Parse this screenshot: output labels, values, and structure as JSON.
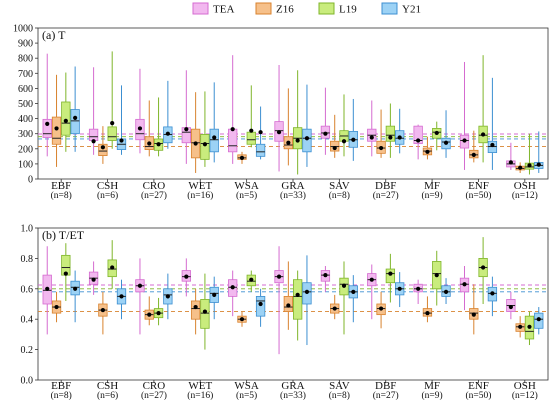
{
  "legend": [
    {
      "name": "TEA",
      "fill": "#f2b8ef",
      "stroke": "#d56bd0"
    },
    {
      "name": "Z16",
      "fill": "#f6c08a",
      "stroke": "#d8822e"
    },
    {
      "name": "L19",
      "fill": "#c9ec7d",
      "stroke": "#7fb52a"
    },
    {
      "name": "Y21",
      "fill": "#9cd2f5",
      "stroke": "#3c8fd1"
    }
  ],
  "categories": [
    "EBF",
    "CSH",
    "CRO",
    "WET",
    "WSA",
    "GRA",
    "SAV",
    "DBF",
    "MF",
    "ENF",
    "OSH"
  ],
  "n_labels": [
    "(n=8)",
    "(n=6)",
    "(n=27)",
    "(n=16)",
    "(n=5)",
    "(n=33)",
    "(n=8)",
    "(n=27)",
    "(n=9)",
    "(n=50)",
    "(n=12)"
  ],
  "chart_data": [
    {
      "type": "box",
      "title": "(a) T",
      "ylim": [
        0,
        1000
      ],
      "yticks": [
        "0",
        "100",
        "200",
        "300",
        "400",
        "500",
        "600",
        "700",
        "800",
        "900",
        "1000"
      ],
      "yticks_values": [
        0,
        100,
        200,
        300,
        400,
        500,
        600,
        700,
        800,
        900,
        1000
      ],
      "ref_lines": [
        {
          "series": "TEA",
          "value": 298
        },
        {
          "series": "Z16",
          "value": 215
        },
        {
          "series": "L19",
          "value": 280
        },
        {
          "series": "Y21",
          "value": 265
        }
      ],
      "groups": [
        [
          {
            "min": 150,
            "q1": 275,
            "med": 300,
            "q3": 395,
            "max": 830,
            "mean": 365
          },
          {
            "min": 80,
            "q1": 230,
            "med": 270,
            "q3": 410,
            "max": 690,
            "mean": 335
          },
          {
            "min": 180,
            "q1": 290,
            "med": 370,
            "q3": 510,
            "max": 705,
            "mean": 385
          },
          {
            "min": 180,
            "q1": 300,
            "med": 385,
            "q3": 460,
            "max": 745,
            "mean": 405
          }
        ],
        [
          {
            "min": 160,
            "q1": 255,
            "med": 280,
            "q3": 330,
            "max": 740,
            "mean": 250
          },
          {
            "min": 100,
            "q1": 155,
            "med": 185,
            "q3": 230,
            "max": 350,
            "mean": 210
          },
          {
            "min": 200,
            "q1": 255,
            "med": 280,
            "q3": 345,
            "max": 845,
            "mean": 370
          },
          {
            "min": 160,
            "q1": 195,
            "med": 230,
            "q3": 265,
            "max": 620,
            "mean": 255
          }
        ],
        [
          {
            "min": 170,
            "q1": 260,
            "med": 300,
            "q3": 395,
            "max": 730,
            "mean": 335
          },
          {
            "min": 150,
            "q1": 195,
            "med": 215,
            "q3": 280,
            "max": 520,
            "mean": 235
          },
          {
            "min": 150,
            "q1": 190,
            "med": 235,
            "q3": 265,
            "max": 540,
            "mean": 230
          },
          {
            "min": 200,
            "q1": 240,
            "med": 295,
            "q3": 345,
            "max": 650,
            "mean": 300
          }
        ],
        [
          {
            "min": 100,
            "q1": 240,
            "med": 310,
            "q3": 340,
            "max": 720,
            "mean": 330
          },
          {
            "min": 40,
            "q1": 140,
            "med": 240,
            "q3": 330,
            "max": 575,
            "mean": 235
          },
          {
            "min": 80,
            "q1": 130,
            "med": 235,
            "q3": 295,
            "max": 580,
            "mean": 230
          },
          {
            "min": 110,
            "q1": 180,
            "med": 260,
            "q3": 330,
            "max": 640,
            "mean": 275
          }
        ],
        [
          {
            "min": 100,
            "q1": 180,
            "med": 220,
            "q3": 330,
            "max": 820,
            "mean": 330
          },
          {
            "min": 100,
            "q1": 130,
            "med": 140,
            "q3": 160,
            "max": 180,
            "mean": 140
          },
          {
            "min": 210,
            "q1": 230,
            "med": 260,
            "q3": 310,
            "max": 620,
            "mean": 320
          },
          {
            "min": 130,
            "q1": 150,
            "med": 180,
            "q3": 230,
            "max": 480,
            "mean": 310
          }
        ],
        [
          {
            "min": 50,
            "q1": 250,
            "med": 320,
            "q3": 380,
            "max": 755,
            "mean": 310
          },
          {
            "min": 90,
            "q1": 200,
            "med": 225,
            "q3": 280,
            "max": 600,
            "mean": 240
          },
          {
            "min": 30,
            "q1": 200,
            "med": 270,
            "q3": 340,
            "max": 720,
            "mean": 255
          },
          {
            "min": 80,
            "q1": 180,
            "med": 270,
            "q3": 330,
            "max": 625,
            "mean": 270
          }
        ],
        [
          {
            "min": 160,
            "q1": 270,
            "med": 305,
            "q3": 350,
            "max": 605,
            "mean": 300
          },
          {
            "min": 140,
            "q1": 185,
            "med": 215,
            "q3": 250,
            "max": 425,
            "mean": 205
          },
          {
            "min": 150,
            "q1": 250,
            "med": 285,
            "q3": 320,
            "max": 560,
            "mean": 250
          },
          {
            "min": 120,
            "q1": 210,
            "med": 260,
            "q3": 315,
            "max": 530,
            "mean": 260
          }
        ],
        [
          {
            "min": 150,
            "q1": 250,
            "med": 290,
            "q3": 330,
            "max": 520,
            "mean": 275
          },
          {
            "min": 140,
            "q1": 170,
            "med": 205,
            "q3": 250,
            "max": 460,
            "mean": 205
          },
          {
            "min": 140,
            "q1": 250,
            "med": 290,
            "q3": 350,
            "max": 500,
            "mean": 275
          },
          {
            "min": 170,
            "q1": 230,
            "med": 270,
            "q3": 320,
            "max": 465,
            "mean": 275
          }
        ],
        [
          {
            "min": 130,
            "q1": 235,
            "med": 255,
            "q3": 350,
            "max": 360,
            "mean": 255
          },
          {
            "min": 130,
            "q1": 160,
            "med": 185,
            "q3": 205,
            "max": 280,
            "mean": 180
          },
          {
            "min": 190,
            "q1": 270,
            "med": 310,
            "q3": 335,
            "max": 380,
            "mean": 305
          },
          {
            "min": 140,
            "q1": 200,
            "med": 245,
            "q3": 270,
            "max": 455,
            "mean": 240
          }
        ],
        [
          {
            "min": 60,
            "q1": 205,
            "med": 255,
            "q3": 290,
            "max": 775,
            "mean": 255
          },
          {
            "min": 110,
            "q1": 140,
            "med": 160,
            "q3": 190,
            "max": 320,
            "mean": 160
          },
          {
            "min": 110,
            "q1": 240,
            "med": 290,
            "q3": 350,
            "max": 820,
            "mean": 295
          },
          {
            "min": 60,
            "q1": 175,
            "med": 215,
            "q3": 250,
            "max": 670,
            "mean": 225
          }
        ],
        [
          {
            "min": 60,
            "q1": 80,
            "med": 100,
            "q3": 120,
            "max": 240,
            "mean": 110
          },
          {
            "min": 40,
            "q1": 60,
            "med": 70,
            "q3": 85,
            "max": 110,
            "mean": 75
          },
          {
            "min": 30,
            "q1": 65,
            "med": 80,
            "q3": 105,
            "max": 300,
            "mean": 90
          },
          {
            "min": 40,
            "q1": 70,
            "med": 90,
            "q3": 110,
            "max": 315,
            "mean": 95
          }
        ]
      ]
    },
    {
      "type": "box",
      "title": "(b) T/ET",
      "ylim": [
        0,
        1.0
      ],
      "yticks": [
        "0.0",
        "0.2",
        "0.4",
        "0.6",
        "0.8",
        "1.0"
      ],
      "yticks_values": [
        0,
        0.2,
        0.4,
        0.6,
        0.8,
        1.0
      ],
      "ref_lines": [
        {
          "series": "TEA",
          "value": 0.625
        },
        {
          "series": "Z16",
          "value": 0.45
        },
        {
          "series": "L19",
          "value": 0.6
        },
        {
          "series": "Y21",
          "value": 0.58
        }
      ],
      "groups": [
        [
          {
            "min": 0.3,
            "q1": 0.5,
            "med": 0.59,
            "q3": 0.69,
            "max": 0.88,
            "mean": 0.6
          },
          {
            "min": 0.38,
            "q1": 0.44,
            "med": 0.48,
            "q3": 0.52,
            "max": 0.58,
            "mean": 0.48
          },
          {
            "min": 0.52,
            "q1": 0.69,
            "med": 0.74,
            "q3": 0.82,
            "max": 0.9,
            "mean": 0.7
          },
          {
            "min": 0.38,
            "q1": 0.56,
            "med": 0.61,
            "q3": 0.65,
            "max": 0.72,
            "mean": 0.6
          }
        ],
        [
          {
            "min": 0.56,
            "q1": 0.63,
            "med": 0.67,
            "q3": 0.71,
            "max": 0.78,
            "mean": 0.66
          },
          {
            "min": 0.3,
            "q1": 0.42,
            "med": 0.46,
            "q3": 0.5,
            "max": 0.58,
            "mean": 0.46
          },
          {
            "min": 0.6,
            "q1": 0.68,
            "med": 0.73,
            "q3": 0.79,
            "max": 0.92,
            "mean": 0.74
          },
          {
            "min": 0.4,
            "q1": 0.5,
            "med": 0.55,
            "q3": 0.6,
            "max": 0.66,
            "mean": 0.55
          }
        ],
        [
          {
            "min": 0.3,
            "q1": 0.58,
            "med": 0.62,
            "q3": 0.66,
            "max": 0.8,
            "mean": 0.62
          },
          {
            "min": 0.36,
            "q1": 0.4,
            "med": 0.43,
            "q3": 0.46,
            "max": 0.55,
            "mean": 0.43
          },
          {
            "min": 0.36,
            "q1": 0.41,
            "med": 0.44,
            "q3": 0.47,
            "max": 0.54,
            "mean": 0.44
          },
          {
            "min": 0.4,
            "q1": 0.5,
            "med": 0.56,
            "q3": 0.6,
            "max": 0.7,
            "mean": 0.55
          }
        ],
        [
          {
            "min": 0.55,
            "q1": 0.65,
            "med": 0.68,
            "q3": 0.72,
            "max": 0.8,
            "mean": 0.68
          },
          {
            "min": 0.3,
            "q1": 0.4,
            "med": 0.47,
            "q3": 0.52,
            "max": 0.6,
            "mean": 0.48
          },
          {
            "min": 0.2,
            "q1": 0.34,
            "med": 0.44,
            "q3": 0.53,
            "max": 0.7,
            "mean": 0.45
          },
          {
            "min": 0.4,
            "q1": 0.51,
            "med": 0.57,
            "q3": 0.61,
            "max": 0.68,
            "mean": 0.56
          }
        ],
        [
          {
            "min": 0.42,
            "q1": 0.55,
            "med": 0.61,
            "q3": 0.66,
            "max": 0.72,
            "mean": 0.61
          },
          {
            "min": 0.35,
            "q1": 0.38,
            "med": 0.4,
            "q3": 0.42,
            "max": 0.45,
            "mean": 0.4
          },
          {
            "min": 0.58,
            "q1": 0.62,
            "med": 0.65,
            "q3": 0.69,
            "max": 0.72,
            "mean": 0.66
          },
          {
            "min": 0.35,
            "q1": 0.42,
            "med": 0.52,
            "q3": 0.55,
            "max": 0.6,
            "mean": 0.5
          }
        ],
        [
          {
            "min": 0.17,
            "q1": 0.64,
            "med": 0.68,
            "q3": 0.72,
            "max": 0.88,
            "mean": 0.68
          },
          {
            "min": 0.33,
            "q1": 0.45,
            "med": 0.48,
            "q3": 0.55,
            "max": 0.78,
            "mean": 0.49
          },
          {
            "min": 0.26,
            "q1": 0.4,
            "med": 0.55,
            "q3": 0.66,
            "max": 0.72,
            "mean": 0.56
          },
          {
            "min": 0.23,
            "q1": 0.5,
            "med": 0.58,
            "q3": 0.64,
            "max": 0.82,
            "mean": 0.58
          }
        ],
        [
          {
            "min": 0.58,
            "q1": 0.65,
            "med": 0.69,
            "q3": 0.72,
            "max": 0.75,
            "mean": 0.69
          },
          {
            "min": 0.4,
            "q1": 0.44,
            "med": 0.47,
            "q3": 0.5,
            "max": 0.56,
            "mean": 0.47
          },
          {
            "min": 0.3,
            "q1": 0.56,
            "med": 0.63,
            "q3": 0.67,
            "max": 0.78,
            "mean": 0.62
          },
          {
            "min": 0.38,
            "q1": 0.54,
            "med": 0.58,
            "q3": 0.62,
            "max": 0.69,
            "mean": 0.58
          }
        ],
        [
          {
            "min": 0.4,
            "q1": 0.62,
            "med": 0.66,
            "q3": 0.7,
            "max": 0.76,
            "mean": 0.66
          },
          {
            "min": 0.34,
            "q1": 0.43,
            "med": 0.47,
            "q3": 0.5,
            "max": 0.58,
            "mean": 0.47
          },
          {
            "min": 0.51,
            "q1": 0.64,
            "med": 0.7,
            "q3": 0.73,
            "max": 0.83,
            "mean": 0.7
          },
          {
            "min": 0.48,
            "q1": 0.56,
            "med": 0.6,
            "q3": 0.64,
            "max": 0.71,
            "mean": 0.6
          }
        ],
        [
          {
            "min": 0.5,
            "q1": 0.58,
            "med": 0.6,
            "q3": 0.63,
            "max": 0.66,
            "mean": 0.6
          },
          {
            "min": 0.38,
            "q1": 0.42,
            "med": 0.44,
            "q3": 0.47,
            "max": 0.55,
            "mean": 0.44
          },
          {
            "min": 0.49,
            "q1": 0.6,
            "med": 0.7,
            "q3": 0.78,
            "max": 0.85,
            "mean": 0.69
          },
          {
            "min": 0.5,
            "q1": 0.55,
            "med": 0.58,
            "q3": 0.62,
            "max": 0.67,
            "mean": 0.58
          }
        ],
        [
          {
            "min": 0.46,
            "q1": 0.58,
            "med": 0.63,
            "q3": 0.67,
            "max": 0.75,
            "mean": 0.63
          },
          {
            "min": 0.3,
            "q1": 0.4,
            "med": 0.44,
            "q3": 0.47,
            "max": 0.63,
            "mean": 0.43
          },
          {
            "min": 0.5,
            "q1": 0.68,
            "med": 0.74,
            "q3": 0.8,
            "max": 0.94,
            "mean": 0.74
          },
          {
            "min": 0.42,
            "q1": 0.52,
            "med": 0.57,
            "q3": 0.61,
            "max": 0.68,
            "mean": 0.57
          }
        ],
        [
          {
            "min": 0.4,
            "q1": 0.45,
            "med": 0.49,
            "q3": 0.53,
            "max": 0.58,
            "mean": 0.48
          },
          {
            "min": 0.28,
            "q1": 0.32,
            "med": 0.35,
            "q3": 0.37,
            "max": 0.42,
            "mean": 0.35
          },
          {
            "min": 0.23,
            "q1": 0.27,
            "med": 0.32,
            "q3": 0.42,
            "max": 0.45,
            "mean": 0.35
          },
          {
            "min": 0.3,
            "q1": 0.34,
            "med": 0.4,
            "q3": 0.44,
            "max": 0.48,
            "mean": 0.4
          }
        ]
      ]
    }
  ]
}
